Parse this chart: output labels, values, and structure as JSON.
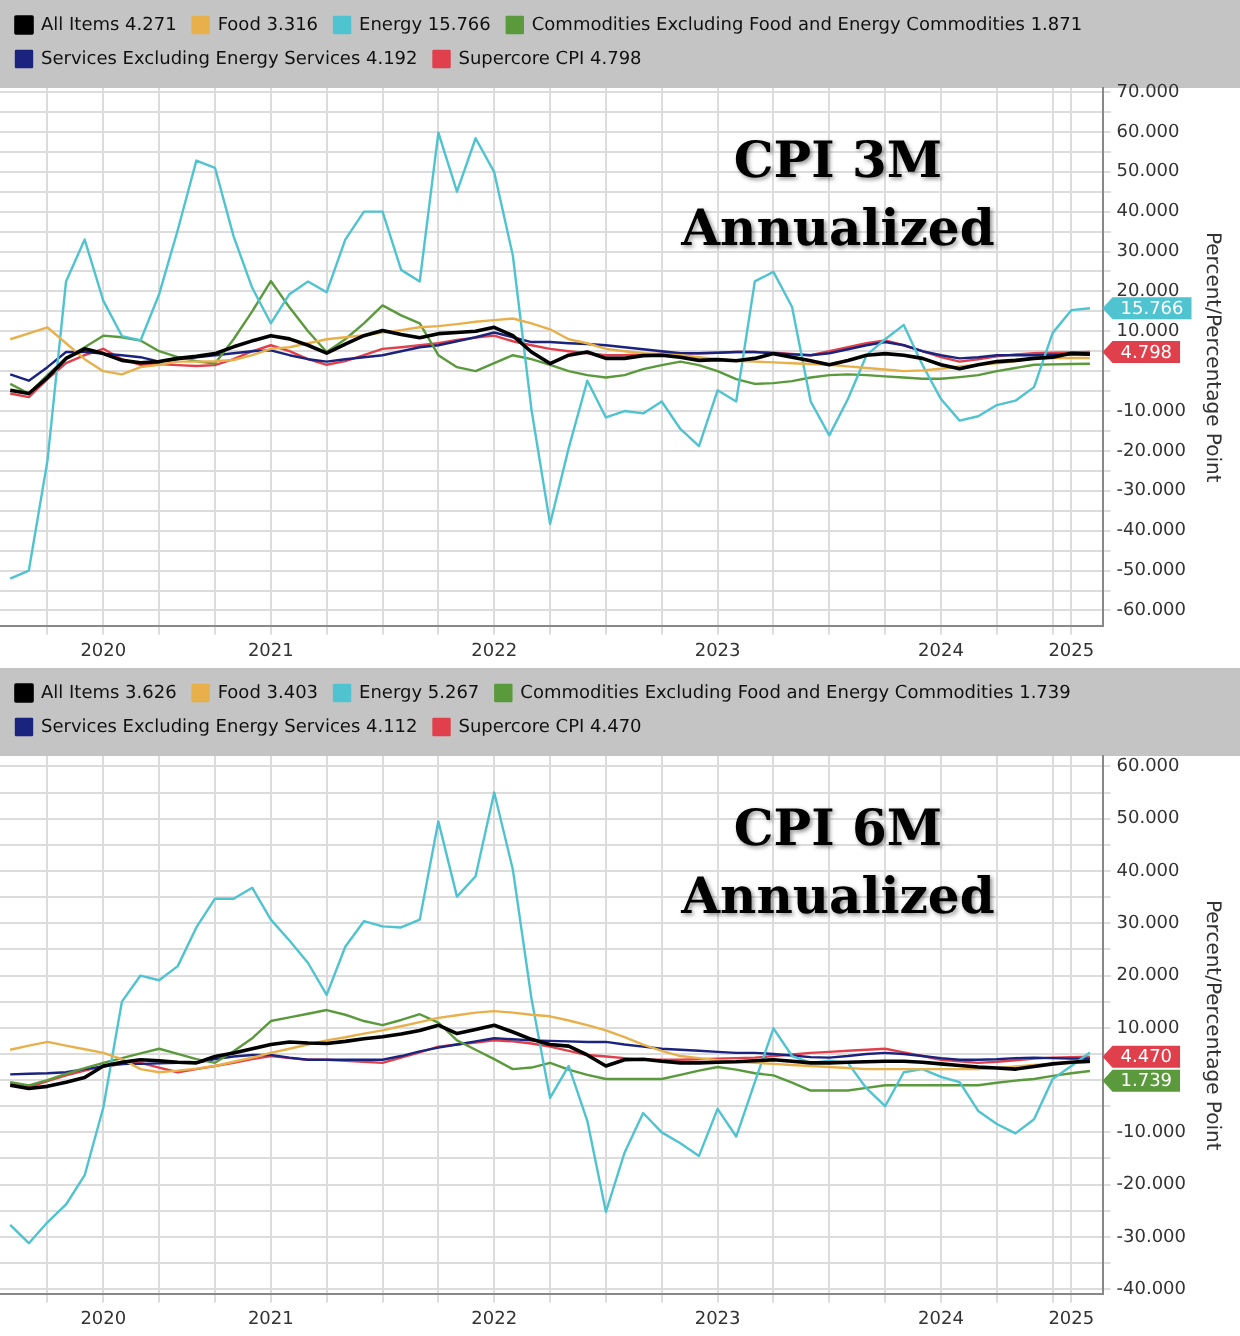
{
  "chart_data": [
    {
      "type": "line",
      "annotations": [
        "CPI 3M",
        "Annualized",
        {
          "text": "15.766",
          "x": "2025-03",
          "y": 15.766
        },
        {
          "text": "4.798",
          "x": "2025-03",
          "y": 4.798
        }
      ],
      "ylabel": "Percent/Percentage Point",
      "legend": "top",
      "grid": true,
      "x": [
        "2020-05",
        "2020-06",
        "2020-07",
        "2020-08",
        "2020-09",
        "2020-10",
        "2020-11",
        "2020-12",
        "2021-01",
        "2021-02",
        "2021-03",
        "2021-04",
        "2021-05",
        "2021-06",
        "2021-07",
        "2021-08",
        "2021-09",
        "2021-10",
        "2021-11",
        "2021-12",
        "2022-01",
        "2022-02",
        "2022-03",
        "2022-04",
        "2022-05",
        "2022-06",
        "2022-07",
        "2022-08",
        "2022-09",
        "2022-10",
        "2022-11",
        "2022-12",
        "2023-01",
        "2023-02",
        "2023-03",
        "2023-04",
        "2023-05",
        "2023-06",
        "2023-07",
        "2023-08",
        "2023-09",
        "2023-10",
        "2023-11",
        "2023-12",
        "2024-01",
        "2024-02",
        "2024-03",
        "2024-04",
        "2024-05",
        "2024-06",
        "2024-07",
        "2024-08",
        "2024-09",
        "2024-10",
        "2024-11",
        "2024-12",
        "2025-01",
        "2025-02",
        "2025-03"
      ],
      "xlim": [
        "2020-04-15",
        "2025-03-22"
      ],
      "xticks": [
        {
          "value": "2020-07",
          "label": null
        },
        {
          "value": "2020-10",
          "label": "2020"
        },
        {
          "value": "2021-01",
          "label": null
        },
        {
          "value": "2021-04",
          "label": null
        },
        {
          "value": "2021-07",
          "label": "2021"
        },
        {
          "value": "2021-10",
          "label": null
        },
        {
          "value": "2022-01",
          "label": null
        },
        {
          "value": "2022-04",
          "label": null
        },
        {
          "value": "2022-07",
          "label": "2022"
        },
        {
          "value": "2022-10",
          "label": null
        },
        {
          "value": "2023-01",
          "label": null
        },
        {
          "value": "2023-04",
          "label": null
        },
        {
          "value": "2023-07",
          "label": "2023"
        },
        {
          "value": "2023-10",
          "label": null
        },
        {
          "value": "2024-01",
          "label": null
        },
        {
          "value": "2024-04",
          "label": null
        },
        {
          "value": "2024-07",
          "label": "2024"
        },
        {
          "value": "2024-10",
          "label": null
        },
        {
          "value": "2025-01",
          "label": null
        },
        {
          "value": "2025-02",
          "label": "2025"
        }
      ],
      "ylim": [
        -64,
        71
      ],
      "yticks": [
        {
          "value": 70,
          "label": "70.000"
        },
        {
          "value": 65,
          "label": null
        },
        {
          "value": 60,
          "label": "60.000"
        },
        {
          "value": 55,
          "label": null
        },
        {
          "value": 50,
          "label": "50.000"
        },
        {
          "value": 45,
          "label": null
        },
        {
          "value": 40,
          "label": "40.000"
        },
        {
          "value": 35,
          "label": null
        },
        {
          "value": 30,
          "label": "30.000"
        },
        {
          "value": 25,
          "label": null
        },
        {
          "value": 20,
          "label": "20.000"
        },
        {
          "value": 15,
          "label": null
        },
        {
          "value": 10,
          "label": "10.000"
        },
        {
          "value": 5,
          "label": null
        },
        {
          "value": 0,
          "label": null
        },
        {
          "value": -5,
          "label": null
        },
        {
          "value": -10,
          "label": "-10.000"
        },
        {
          "value": -15,
          "label": null
        },
        {
          "value": -20,
          "label": "-20.000"
        },
        {
          "value": -25,
          "label": null
        },
        {
          "value": -30,
          "label": "-30.000"
        },
        {
          "value": -35,
          "label": null
        },
        {
          "value": -40,
          "label": "-40.000"
        },
        {
          "value": -45,
          "label": null
        },
        {
          "value": -50,
          "label": "-50.000"
        },
        {
          "value": -55,
          "label": null
        },
        {
          "value": -60,
          "label": "-60.000"
        }
      ],
      "series": [
        {
          "name": "All Items 4.271",
          "color": "#000000",
          "values": [
            -4.8,
            -5.6,
            -1.6,
            3.2,
            5.6,
            4.4,
            2.7,
            2.1,
            2.4,
            3.2,
            3.7,
            4.4,
            6.1,
            7.6,
            8.9,
            8.1,
            6.5,
            4.5,
            6.8,
            8.9,
            10.2,
            9.2,
            8.4,
            9.4,
            9.7,
            10,
            11,
            8.9,
            4.8,
            1.9,
            4,
            4.8,
            3.2,
            3.2,
            3.9,
            4,
            3.5,
            2.7,
            2.9,
            2.6,
            3.2,
            4.4,
            3.5,
            2.6,
            1.6,
            2.7,
            4,
            4.4,
            4,
            3.2,
            1.6,
            0.6,
            1.6,
            2.4,
            2.7,
            3.2,
            3.5,
            4.5,
            4.271
          ]
        },
        {
          "name": "Food 3.316",
          "color": "#e8b04a",
          "values": [
            8,
            9.5,
            11,
            7,
            3,
            0,
            -0.8,
            1,
            1.6,
            2.4,
            2.4,
            2.5,
            2.8,
            4,
            5.6,
            6,
            7,
            8,
            8.5,
            9,
            9.7,
            10.3,
            11,
            11.3,
            11.8,
            12.4,
            12.8,
            13.2,
            12,
            10.5,
            8,
            7,
            5.6,
            5,
            4.5,
            4.2,
            4,
            3.5,
            3,
            2.6,
            2.4,
            2.2,
            2,
            1.8,
            1.6,
            1.2,
            0.8,
            0.4,
            0,
            0.2,
            0.6,
            1.2,
            1.6,
            2,
            2.5,
            3.2,
            3.3,
            3.3,
            3.316
          ]
        },
        {
          "name": "Energy 15.766",
          "color": "#4fc3d0",
          "values": [
            -52,
            -50,
            -22.5,
            22.5,
            33,
            17.7,
            8.8,
            7.7,
            19.3,
            35.4,
            52.8,
            51,
            33.8,
            20.9,
            12,
            19.3,
            22.5,
            19.8,
            33,
            40,
            40,
            25.4,
            22.5,
            59.8,
            45,
            58.4,
            49.9,
            29,
            -9.6,
            -38.3,
            -19.3,
            -2.4,
            -11.6,
            -10,
            -10.6,
            -7.6,
            -14.5,
            -18.8,
            -4.8,
            -7.6,
            22.5,
            24.9,
            16.1,
            -7.6,
            -16.1,
            -7,
            4,
            8,
            11.6,
            1.6,
            -7,
            -12.4,
            -11.3,
            -8.5,
            -7.4,
            -4,
            9.6,
            15.3,
            15.766
          ]
        },
        {
          "name": "Commodities Excluding Food and Energy Commodities 1.871",
          "color": "#5a9a3c",
          "values": [
            -3.2,
            -5.6,
            -1,
            3.2,
            6,
            8.9,
            8.5,
            7.7,
            5,
            3.5,
            2.5,
            1.9,
            8,
            15,
            22.6,
            16,
            10,
            4.8,
            8,
            12,
            16.5,
            14,
            12,
            4,
            1,
            0,
            2,
            4,
            3,
            1.6,
            0,
            -1,
            -1.6,
            -1,
            0.5,
            1.5,
            2.4,
            1.5,
            0,
            -2,
            -3.2,
            -3,
            -2.5,
            -1.6,
            -1,
            -0.8,
            -1,
            -1.3,
            -1.6,
            -1.9,
            -1.9,
            -1.5,
            -1,
            0,
            0.8,
            1.6,
            1.7,
            1.8,
            1.871
          ]
        },
        {
          "name": "Services Excluding Energy Services 4.192",
          "color": "#1a237e",
          "values": [
            -0.8,
            -2.4,
            1,
            4.8,
            4.8,
            4.4,
            4,
            3.5,
            2.4,
            3,
            3.5,
            4,
            4.5,
            5,
            5.2,
            4,
            3,
            2.4,
            3,
            3.5,
            4,
            5,
            6,
            6.5,
            7.5,
            8.5,
            9.7,
            8.5,
            7.3,
            7.3,
            7,
            6.8,
            6.5,
            6,
            5.5,
            5,
            4.5,
            4.5,
            4.6,
            4.8,
            4.8,
            4.5,
            4.2,
            4,
            4.5,
            5.5,
            6.5,
            7.3,
            6.5,
            5,
            4,
            3.2,
            3.5,
            4,
            4,
            4,
            4.1,
            4.2,
            4.192
          ]
        },
        {
          "name": "Supercore CPI 4.798",
          "color": "#e0404c",
          "values": [
            -5.6,
            -6.5,
            -2,
            2,
            4,
            5.6,
            3,
            1.6,
            1.8,
            1.5,
            1.3,
            1.5,
            3,
            5,
            6.5,
            5,
            3,
            1.6,
            2.5,
            4,
            5.6,
            6,
            6.5,
            7,
            7.8,
            8.4,
            8.9,
            7.5,
            6.5,
            5.6,
            5,
            4.5,
            4,
            4,
            4.2,
            4.4,
            4.5,
            4.5,
            4.6,
            4.8,
            4.8,
            4.6,
            4.3,
            4,
            5,
            6,
            7,
            7.7,
            6.5,
            5,
            3.5,
            2.4,
            3,
            3.7,
            4.2,
            4.5,
            4.6,
            4.7,
            4.798
          ]
        }
      ]
    },
    {
      "type": "line",
      "annotations": [
        "CPI 6M",
        "Annualized",
        {
          "text": "4.470",
          "x": "2025-03",
          "y": 4.47
        },
        {
          "text": "1.739",
          "x": "2025-03",
          "y": 1.739
        }
      ],
      "ylabel": "Percent/Percentage Point",
      "legend": "top",
      "grid": true,
      "x": [
        "2020-05",
        "2020-06",
        "2020-07",
        "2020-08",
        "2020-09",
        "2020-10",
        "2020-11",
        "2020-12",
        "2021-01",
        "2021-02",
        "2021-03",
        "2021-04",
        "2021-05",
        "2021-06",
        "2021-07",
        "2021-08",
        "2021-09",
        "2021-10",
        "2021-11",
        "2021-12",
        "2022-01",
        "2022-02",
        "2022-03",
        "2022-04",
        "2022-05",
        "2022-06",
        "2022-07",
        "2022-08",
        "2022-09",
        "2022-10",
        "2022-11",
        "2022-12",
        "2023-01",
        "2023-02",
        "2023-03",
        "2023-04",
        "2023-05",
        "2023-06",
        "2023-07",
        "2023-08",
        "2023-09",
        "2023-10",
        "2023-11",
        "2023-12",
        "2024-01",
        "2024-02",
        "2024-03",
        "2024-04",
        "2024-05",
        "2024-06",
        "2024-07",
        "2024-08",
        "2024-09",
        "2024-10",
        "2024-11",
        "2024-12",
        "2025-01",
        "2025-02",
        "2025-03"
      ],
      "xlim": [
        "2020-04-15",
        "2025-03-22"
      ],
      "xticks": [
        {
          "value": "2020-07",
          "label": null
        },
        {
          "value": "2020-10",
          "label": "2020"
        },
        {
          "value": "2021-01",
          "label": null
        },
        {
          "value": "2021-04",
          "label": null
        },
        {
          "value": "2021-07",
          "label": "2021"
        },
        {
          "value": "2021-10",
          "label": null
        },
        {
          "value": "2022-01",
          "label": null
        },
        {
          "value": "2022-04",
          "label": null
        },
        {
          "value": "2022-07",
          "label": "2022"
        },
        {
          "value": "2022-10",
          "label": null
        },
        {
          "value": "2023-01",
          "label": null
        },
        {
          "value": "2023-04",
          "label": null
        },
        {
          "value": "2023-07",
          "label": "2023"
        },
        {
          "value": "2023-10",
          "label": null
        },
        {
          "value": "2024-01",
          "label": null
        },
        {
          "value": "2024-04",
          "label": null
        },
        {
          "value": "2024-07",
          "label": "2024"
        },
        {
          "value": "2024-10",
          "label": null
        },
        {
          "value": "2025-01",
          "label": null
        },
        {
          "value": "2025-02",
          "label": "2025"
        }
      ],
      "ylim": [
        -41,
        62
      ],
      "yticks": [
        {
          "value": 60,
          "label": "60.000"
        },
        {
          "value": 55,
          "label": null
        },
        {
          "value": 50,
          "label": "50.000"
        },
        {
          "value": 45,
          "label": null
        },
        {
          "value": 40,
          "label": "40.000"
        },
        {
          "value": 35,
          "label": null
        },
        {
          "value": 30,
          "label": "30.000"
        },
        {
          "value": 25,
          "label": null
        },
        {
          "value": 20,
          "label": "20.000"
        },
        {
          "value": 15,
          "label": null
        },
        {
          "value": 10,
          "label": "10.000"
        },
        {
          "value": 5,
          "label": null
        },
        {
          "value": 0,
          "label": null
        },
        {
          "value": -5,
          "label": null
        },
        {
          "value": -10,
          "label": "-10.000"
        },
        {
          "value": -15,
          "label": null
        },
        {
          "value": -20,
          "label": "-20.000"
        },
        {
          "value": -25,
          "label": null
        },
        {
          "value": -30,
          "label": "-30.000"
        },
        {
          "value": -35,
          "label": null
        },
        {
          "value": -40,
          "label": "-40.000"
        }
      ],
      "series": [
        {
          "name": "All Items 3.626",
          "color": "#000000",
          "values": [
            -1,
            -1.6,
            -1.2,
            -0.4,
            0.5,
            2.7,
            3.4,
            3.9,
            3.7,
            3.4,
            3.3,
            4.5,
            5.2,
            6,
            6.8,
            7.3,
            7.1,
            7,
            7.4,
            7.9,
            8.3,
            8.8,
            9.5,
            10.5,
            8.9,
            9.7,
            10.5,
            9.2,
            7.8,
            6.8,
            6.5,
            4.8,
            2.7,
            3.9,
            4,
            3.6,
            3.3,
            3.3,
            3.4,
            3.5,
            3.7,
            3.9,
            3.6,
            3.3,
            3.3,
            3.4,
            3.5,
            3.6,
            3.6,
            3.4,
            3.1,
            2.8,
            2.5,
            2.3,
            2.1,
            2.6,
            3.1,
            3.4,
            3.626
          ]
        },
        {
          "name": "Food 3.403",
          "color": "#e8b04a",
          "values": [
            5.8,
            6.6,
            7.3,
            6.6,
            5.9,
            5.2,
            4,
            2.1,
            1.5,
            1.8,
            2.2,
            2.7,
            3.5,
            4.3,
            5.2,
            6,
            6.8,
            7.6,
            8.2,
            8.9,
            9.5,
            10.3,
            11.1,
            11.9,
            12.4,
            12.9,
            13.2,
            12.9,
            12.5,
            12.2,
            11.4,
            10.5,
            9.5,
            8.2,
            6.8,
            5.6,
            4.6,
            4.2,
            3.8,
            3.5,
            3.3,
            3.1,
            2.9,
            2.7,
            2.5,
            2.3,
            2.1,
            2.1,
            2.1,
            2.1,
            2.1,
            2.1,
            2.1,
            2.3,
            2.6,
            2.9,
            3.1,
            3.3,
            3.403
          ]
        },
        {
          "name": "Energy 5.267",
          "color": "#4fc3d0",
          "values": [
            -27.7,
            -31.2,
            -27.2,
            -23.8,
            -18.2,
            -5.3,
            15,
            20,
            19.1,
            21.8,
            29.2,
            34.7,
            34.7,
            36.8,
            30.7,
            26.7,
            22.4,
            16.3,
            25.5,
            30.4,
            29.4,
            29.2,
            30.7,
            49.5,
            35.1,
            39,
            55,
            40.3,
            15.6,
            -3.4,
            2.7,
            -7.8,
            -25.2,
            -13.9,
            -6.3,
            -10,
            -12.1,
            -14.5,
            -5.5,
            -10.8,
            -0.4,
            9.9,
            4.6,
            3.3,
            3.7,
            3.3,
            -1.6,
            -5,
            1.5,
            2.1,
            0.6,
            -0.4,
            -5.9,
            -8.4,
            -10.2,
            -7.5,
            0.2,
            2.7,
            5.267
          ]
        },
        {
          "name": "Commodities Excluding Food and Energy Commodities 1.739",
          "color": "#5a9a3c",
          "values": [
            -0.4,
            -1,
            0,
            1.2,
            2.3,
            3.3,
            4.2,
            5.1,
            6,
            5,
            4,
            3.3,
            5.5,
            8,
            11.3,
            12,
            12.7,
            13.4,
            12.5,
            11.3,
            10.5,
            11.5,
            12.6,
            11,
            7.6,
            5.8,
            4,
            2.1,
            2.4,
            3.3,
            2,
            1,
            0.2,
            0.2,
            0.2,
            0.2,
            1,
            1.8,
            2.5,
            2,
            1.3,
            0.9,
            -0.5,
            -2,
            -2,
            -2,
            -1.5,
            -1,
            -1,
            -1,
            -1,
            -1,
            -1,
            -0.5,
            -0.1,
            0.2,
            0.8,
            1.3,
            1.739
          ]
        },
        {
          "name": "Services Excluding Energy Services 4.112",
          "color": "#1a237e",
          "values": [
            1.1,
            1.2,
            1.3,
            1.5,
            2.1,
            2.6,
            3.1,
            3.1,
            3.2,
            3.3,
            3.3,
            4,
            4.5,
            4.8,
            4.8,
            4.3,
            3.9,
            3.9,
            3.9,
            3.9,
            3.9,
            4.6,
            5.5,
            6.2,
            6.8,
            7.4,
            8,
            7.8,
            7.6,
            7.5,
            7.4,
            7.3,
            7.3,
            6.8,
            6.4,
            6,
            5.8,
            5.6,
            5.4,
            5.2,
            5.2,
            5,
            4.7,
            4.4,
            4.3,
            4.6,
            5,
            5.2,
            5,
            4.6,
            4.2,
            3.9,
            3.9,
            4,
            4.2,
            4.3,
            4.2,
            4.1,
            4.112
          ]
        },
        {
          "name": "Supercore CPI 4.470",
          "color": "#e0404c",
          "values": [
            -0.6,
            -1.4,
            -0.2,
            0.9,
            1.8,
            2.7,
            3,
            3.3,
            2.4,
            1.5,
            2.1,
            2.7,
            3.3,
            4,
            4.6,
            4.2,
            3.9,
            3.9,
            3.7,
            3.5,
            3.3,
            4.3,
            5.3,
            6.4,
            6.8,
            7.2,
            7.6,
            7.4,
            7,
            6.4,
            5.6,
            4.8,
            4.5,
            4.2,
            3.9,
            3.9,
            3.9,
            4,
            4.1,
            4.2,
            4.3,
            4.6,
            4.9,
            5.2,
            5.4,
            5.6,
            5.8,
            6,
            5.3,
            4.6,
            3.9,
            3.6,
            3.3,
            3.5,
            3.8,
            4.1,
            4.3,
            4.4,
            4.47
          ]
        }
      ]
    }
  ]
}
